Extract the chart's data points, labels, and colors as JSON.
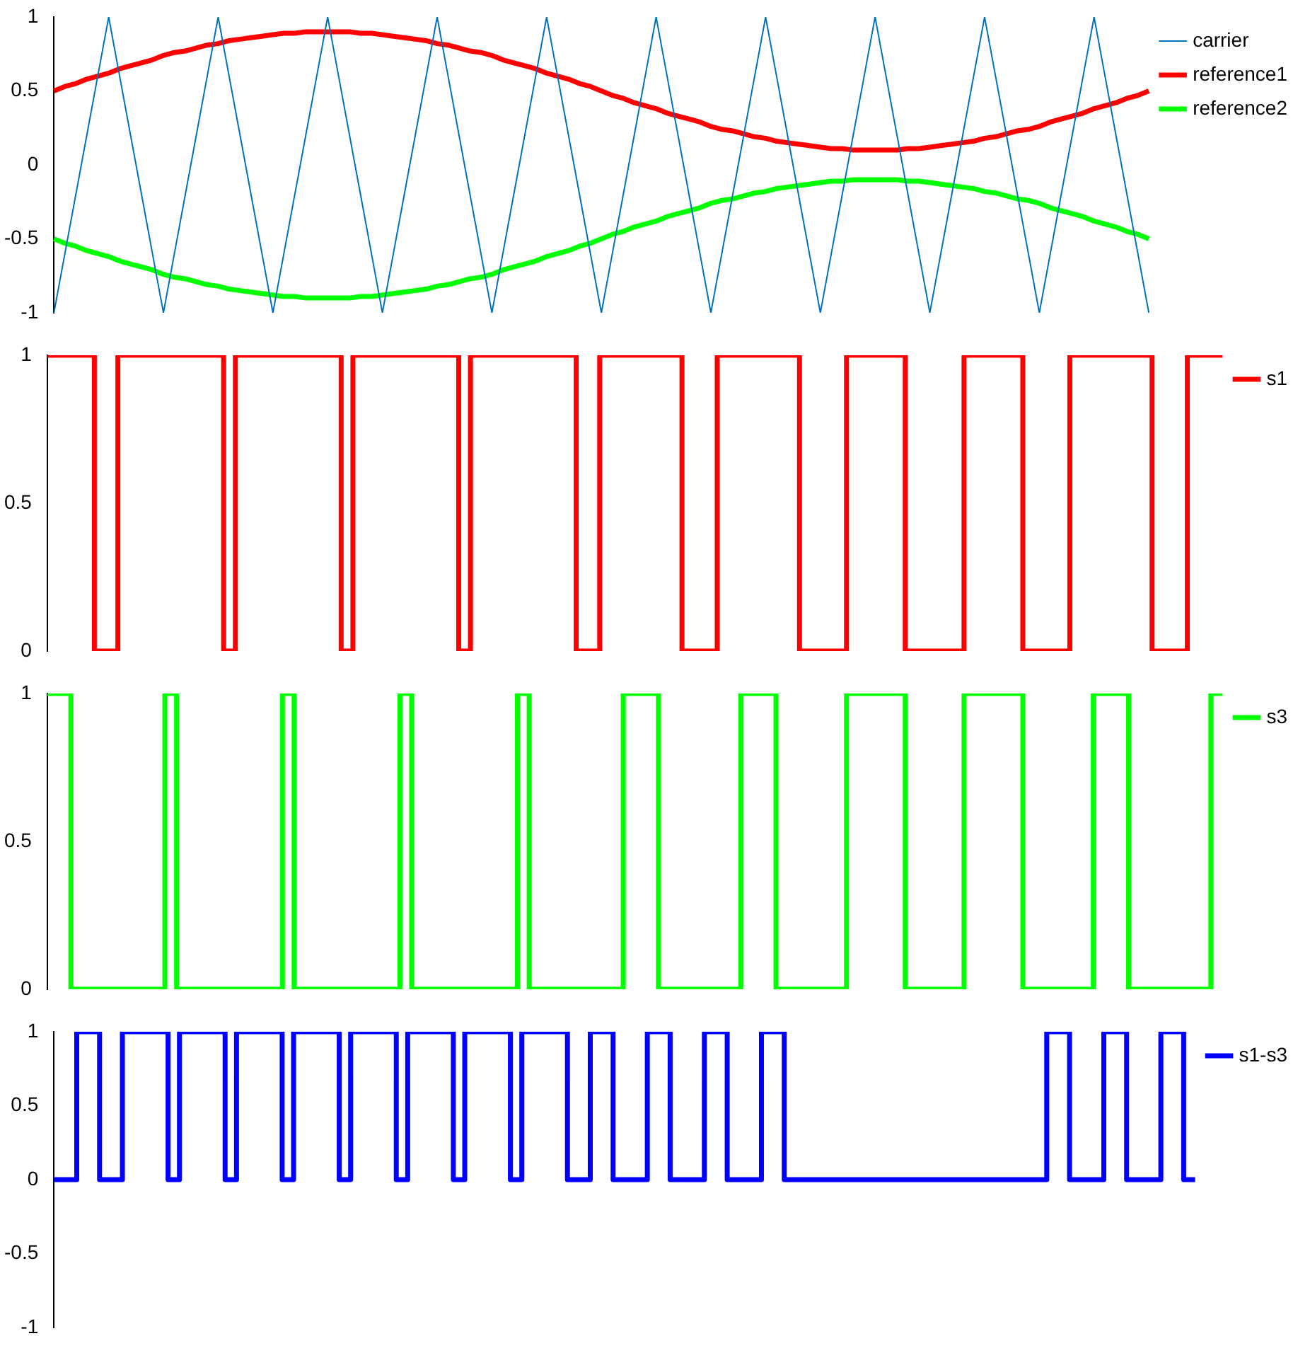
{
  "chart_data": [
    {
      "type": "line",
      "categories": [
        null,
        null,
        null,
        null,
        null,
        null,
        null,
        null,
        null,
        null,
        null,
        null,
        null,
        null,
        null,
        null,
        null,
        null,
        null,
        null,
        null,
        null,
        null,
        null,
        null,
        null,
        null,
        null,
        null,
        null,
        null,
        null,
        null,
        null,
        null,
        null,
        null,
        null,
        null,
        null,
        null,
        null,
        null,
        null,
        null,
        null,
        null,
        null,
        null,
        null,
        null,
        null,
        null,
        null,
        null,
        null,
        null,
        null,
        null,
        null,
        null,
        null,
        null,
        null,
        null,
        null,
        null,
        null,
        null,
        null,
        null,
        null,
        null,
        null,
        null,
        null,
        null,
        null,
        null,
        null,
        null,
        null,
        null,
        null,
        null,
        null,
        null,
        null,
        null,
        null,
        null,
        null,
        null,
        null,
        null,
        null,
        null,
        null,
        null,
        null,
        null
      ],
      "ylim": [
        -1,
        1
      ],
      "yticks": [
        -1,
        -0.5,
        0,
        0.5,
        1
      ],
      "tick_labels": "y",
      "legend": "top right",
      "marker": "none",
      "series": [
        {
          "name": "carrier",
          "color": "#0072bd",
          "values": [
            -1,
            -0.6,
            -0.2,
            0.2,
            0.6,
            1,
            0.6,
            0.2,
            -0.2,
            -0.6,
            -1,
            -0.6,
            -0.2,
            0.2,
            0.6,
            1,
            0.6,
            0.2,
            -0.2,
            -0.6,
            -1,
            -0.6,
            -0.2,
            0.2,
            0.6,
            1,
            0.6,
            0.2,
            -0.2,
            -0.6,
            -1,
            -0.6,
            -0.2,
            0.2,
            0.6,
            1,
            0.6,
            0.2,
            -0.2,
            -0.6,
            -1,
            -0.6,
            -0.2,
            0.2,
            0.6,
            1,
            0.6,
            0.2,
            -0.2,
            -0.6,
            -1,
            -0.6,
            -0.2,
            0.2,
            0.6,
            1,
            0.6,
            0.2,
            -0.2,
            -0.6,
            -1,
            -0.6,
            -0.2,
            0.2,
            0.6,
            1,
            0.6,
            0.2,
            -0.2,
            -0.6,
            -1,
            -0.6,
            -0.2,
            0.2,
            0.6,
            1,
            0.6,
            0.2,
            -0.2,
            -0.6,
            -1,
            -0.6,
            -0.2,
            0.2,
            0.6,
            1,
            0.6,
            0.2,
            -0.2,
            -0.6,
            -1,
            -0.6,
            -0.2,
            0.2,
            0.6,
            1,
            0.6,
            0.2,
            -0.2,
            -0.6,
            -1
          ]
        },
        {
          "name": "reference1",
          "color": "#ff0000",
          "values": [
            0.5,
            0.53,
            0.55,
            0.58,
            0.6,
            0.62,
            0.65,
            0.67,
            0.69,
            0.71,
            0.74,
            0.76,
            0.77,
            0.79,
            0.81,
            0.82,
            0.84,
            0.85,
            0.86,
            0.87,
            0.88,
            0.89,
            0.89,
            0.9,
            0.9,
            0.9,
            0.9,
            0.9,
            0.89,
            0.89,
            0.88,
            0.87,
            0.86,
            0.85,
            0.84,
            0.82,
            0.81,
            0.79,
            0.77,
            0.76,
            0.74,
            0.71,
            0.69,
            0.67,
            0.65,
            0.62,
            0.6,
            0.58,
            0.55,
            0.53,
            0.5,
            0.47,
            0.45,
            0.42,
            0.4,
            0.38,
            0.35,
            0.33,
            0.31,
            0.29,
            0.26,
            0.24,
            0.23,
            0.21,
            0.19,
            0.18,
            0.16,
            0.15,
            0.14,
            0.13,
            0.12,
            0.11,
            0.11,
            0.1,
            0.1,
            0.1,
            0.1,
            0.1,
            0.11,
            0.11,
            0.12,
            0.13,
            0.14,
            0.15,
            0.16,
            0.18,
            0.19,
            0.21,
            0.23,
            0.24,
            0.26,
            0.29,
            0.31,
            0.33,
            0.35,
            0.38,
            0.4,
            0.42,
            0.45,
            0.47,
            0.5
          ]
        },
        {
          "name": "reference2",
          "color": "#00ff00",
          "values": [
            -0.5,
            -0.53,
            -0.55,
            -0.58,
            -0.6,
            -0.62,
            -0.65,
            -0.67,
            -0.69,
            -0.71,
            -0.74,
            -0.76,
            -0.77,
            -0.79,
            -0.81,
            -0.82,
            -0.84,
            -0.85,
            -0.86,
            -0.87,
            -0.88,
            -0.89,
            -0.89,
            -0.9,
            -0.9,
            -0.9,
            -0.9,
            -0.9,
            -0.89,
            -0.89,
            -0.88,
            -0.87,
            -0.86,
            -0.85,
            -0.84,
            -0.82,
            -0.81,
            -0.79,
            -0.77,
            -0.76,
            -0.74,
            -0.71,
            -0.69,
            -0.67,
            -0.65,
            -0.62,
            -0.6,
            -0.58,
            -0.55,
            -0.53,
            -0.5,
            -0.47,
            -0.45,
            -0.42,
            -0.4,
            -0.38,
            -0.35,
            -0.33,
            -0.31,
            -0.29,
            -0.26,
            -0.24,
            -0.23,
            -0.21,
            -0.19,
            -0.18,
            -0.16,
            -0.15,
            -0.14,
            -0.13,
            -0.12,
            -0.11,
            -0.11,
            -0.1,
            -0.1,
            -0.1,
            -0.1,
            -0.1,
            -0.11,
            -0.11,
            -0.12,
            -0.13,
            -0.14,
            -0.15,
            -0.16,
            -0.18,
            -0.19,
            -0.21,
            -0.23,
            -0.24,
            -0.26,
            -0.29,
            -0.31,
            -0.33,
            -0.35,
            -0.38,
            -0.4,
            -0.42,
            -0.45,
            -0.47,
            -0.5
          ]
        }
      ]
    },
    {
      "type": "step",
      "categories": [
        null,
        null,
        null,
        null,
        null,
        null,
        null,
        null,
        null,
        null,
        null,
        null,
        null,
        null,
        null,
        null,
        null,
        null,
        null,
        null,
        null,
        null,
        null,
        null,
        null,
        null,
        null,
        null,
        null,
        null,
        null,
        null,
        null,
        null,
        null,
        null,
        null,
        null,
        null,
        null,
        null,
        null,
        null,
        null,
        null,
        null,
        null,
        null,
        null,
        null,
        null,
        null,
        null,
        null,
        null,
        null,
        null,
        null,
        null,
        null,
        null,
        null,
        null,
        null,
        null,
        null,
        null,
        null,
        null,
        null,
        null,
        null,
        null,
        null,
        null,
        null,
        null,
        null,
        null,
        null,
        null,
        null,
        null,
        null,
        null,
        null,
        null,
        null,
        null,
        null,
        null,
        null,
        null,
        null,
        null,
        null,
        null,
        null,
        null,
        null,
        null
      ],
      "ylim": [
        0,
        1
      ],
      "yticks": [
        0,
        0.5,
        1
      ],
      "tick_labels": "y",
      "legend": "top right",
      "marker": "none",
      "series": [
        {
          "name": "s1",
          "color": "#ff0000",
          "values": [
            1,
            1,
            1,
            1,
            0,
            0,
            1,
            1,
            1,
            1,
            1,
            1,
            1,
            1,
            1,
            0,
            1,
            1,
            1,
            1,
            1,
            1,
            1,
            1,
            1,
            0,
            1,
            1,
            1,
            1,
            1,
            1,
            1,
            1,
            1,
            0,
            1,
            1,
            1,
            1,
            1,
            1,
            1,
            1,
            1,
            0,
            0,
            1,
            1,
            1,
            1,
            1,
            1,
            1,
            0,
            0,
            0,
            1,
            1,
            1,
            1,
            1,
            1,
            1,
            0,
            0,
            0,
            0,
            1,
            1,
            1,
            1,
            1,
            0,
            0,
            0,
            0,
            0,
            1,
            1,
            1,
            1,
            1,
            0,
            0,
            0,
            0,
            1,
            1,
            1,
            1,
            1,
            1,
            1,
            0,
            0,
            0,
            1,
            1,
            1,
            1
          ]
        }
      ]
    },
    {
      "type": "step",
      "categories": [
        null,
        null,
        null,
        null,
        null,
        null,
        null,
        null,
        null,
        null,
        null,
        null,
        null,
        null,
        null,
        null,
        null,
        null,
        null,
        null,
        null,
        null,
        null,
        null,
        null,
        null,
        null,
        null,
        null,
        null,
        null,
        null,
        null,
        null,
        null,
        null,
        null,
        null,
        null,
        null,
        null,
        null,
        null,
        null,
        null,
        null,
        null,
        null,
        null,
        null,
        null,
        null,
        null,
        null,
        null,
        null,
        null,
        null,
        null,
        null,
        null,
        null,
        null,
        null,
        null,
        null,
        null,
        null,
        null,
        null,
        null,
        null,
        null,
        null,
        null,
        null,
        null,
        null,
        null,
        null,
        null,
        null,
        null,
        null,
        null,
        null,
        null,
        null,
        null,
        null,
        null,
        null,
        null,
        null,
        null,
        null,
        null,
        null,
        null,
        null,
        null
      ],
      "ylim": [
        0,
        1
      ],
      "yticks": [
        0,
        0.5,
        1
      ],
      "tick_labels": "y",
      "legend": "top right",
      "marker": "none",
      "series": [
        {
          "name": "s3",
          "color": "#00ff00",
          "values": [
            1,
            1,
            0,
            0,
            0,
            0,
            0,
            0,
            0,
            0,
            1,
            0,
            0,
            0,
            0,
            0,
            0,
            0,
            0,
            0,
            1,
            0,
            0,
            0,
            0,
            0,
            0,
            0,
            0,
            0,
            1,
            0,
            0,
            0,
            0,
            0,
            0,
            0,
            0,
            0,
            1,
            0,
            0,
            0,
            0,
            0,
            0,
            0,
            0,
            1,
            1,
            1,
            0,
            0,
            0,
            0,
            0,
            0,
            0,
            1,
            1,
            1,
            0,
            0,
            0,
            0,
            0,
            0,
            1,
            1,
            1,
            1,
            1,
            0,
            0,
            0,
            0,
            0,
            1,
            1,
            1,
            1,
            1,
            0,
            0,
            0,
            0,
            0,
            0,
            1,
            1,
            1,
            0,
            0,
            0,
            0,
            0,
            0,
            0,
            1,
            1
          ]
        }
      ]
    },
    {
      "type": "step",
      "categories": [
        null,
        null,
        null,
        null,
        null,
        null,
        null,
        null,
        null,
        null,
        null,
        null,
        null,
        null,
        null,
        null,
        null,
        null,
        null,
        null,
        null,
        null,
        null,
        null,
        null,
        null,
        null,
        null,
        null,
        null,
        null,
        null,
        null,
        null,
        null,
        null,
        null,
        null,
        null,
        null,
        null,
        null,
        null,
        null,
        null,
        null,
        null,
        null,
        null,
        null,
        null,
        null,
        null,
        null,
        null,
        null,
        null,
        null,
        null,
        null,
        null,
        null,
        null,
        null,
        null,
        null,
        null,
        null,
        null,
        null,
        null,
        null,
        null,
        null,
        null,
        null,
        null,
        null,
        null,
        null,
        null,
        null,
        null,
        null,
        null,
        null,
        null,
        null,
        null,
        null,
        null,
        null,
        null,
        null,
        null,
        null,
        null,
        null,
        null,
        null,
        null
      ],
      "ylim": [
        -1,
        1
      ],
      "yticks": [
        -1,
        -0.5,
        0,
        0.5,
        1
      ],
      "tick_labels": "y",
      "legend": "top right",
      "marker": "none",
      "series": [
        {
          "name": "s1-s3",
          "color": "#0000ff",
          "values": [
            0,
            0,
            1,
            1,
            0,
            0,
            1,
            1,
            1,
            1,
            0,
            1,
            1,
            1,
            1,
            0,
            1,
            1,
            1,
            1,
            0,
            1,
            1,
            1,
            1,
            0,
            1,
            1,
            1,
            1,
            0,
            1,
            1,
            1,
            1,
            0,
            1,
            1,
            1,
            1,
            0,
            1,
            1,
            1,
            1,
            0,
            0,
            1,
            1,
            0,
            0,
            0,
            1,
            1,
            0,
            0,
            0,
            1,
            1,
            0,
            0,
            0,
            1,
            1,
            0,
            0,
            0,
            0,
            0,
            0,
            0,
            0,
            0,
            0,
            0,
            0,
            0,
            0,
            0,
            0,
            0,
            0,
            0,
            0,
            0,
            0,
            0,
            1,
            1,
            0,
            0,
            0,
            1,
            1,
            0,
            0,
            0,
            1,
            1,
            0,
            0
          ]
        }
      ]
    }
  ]
}
